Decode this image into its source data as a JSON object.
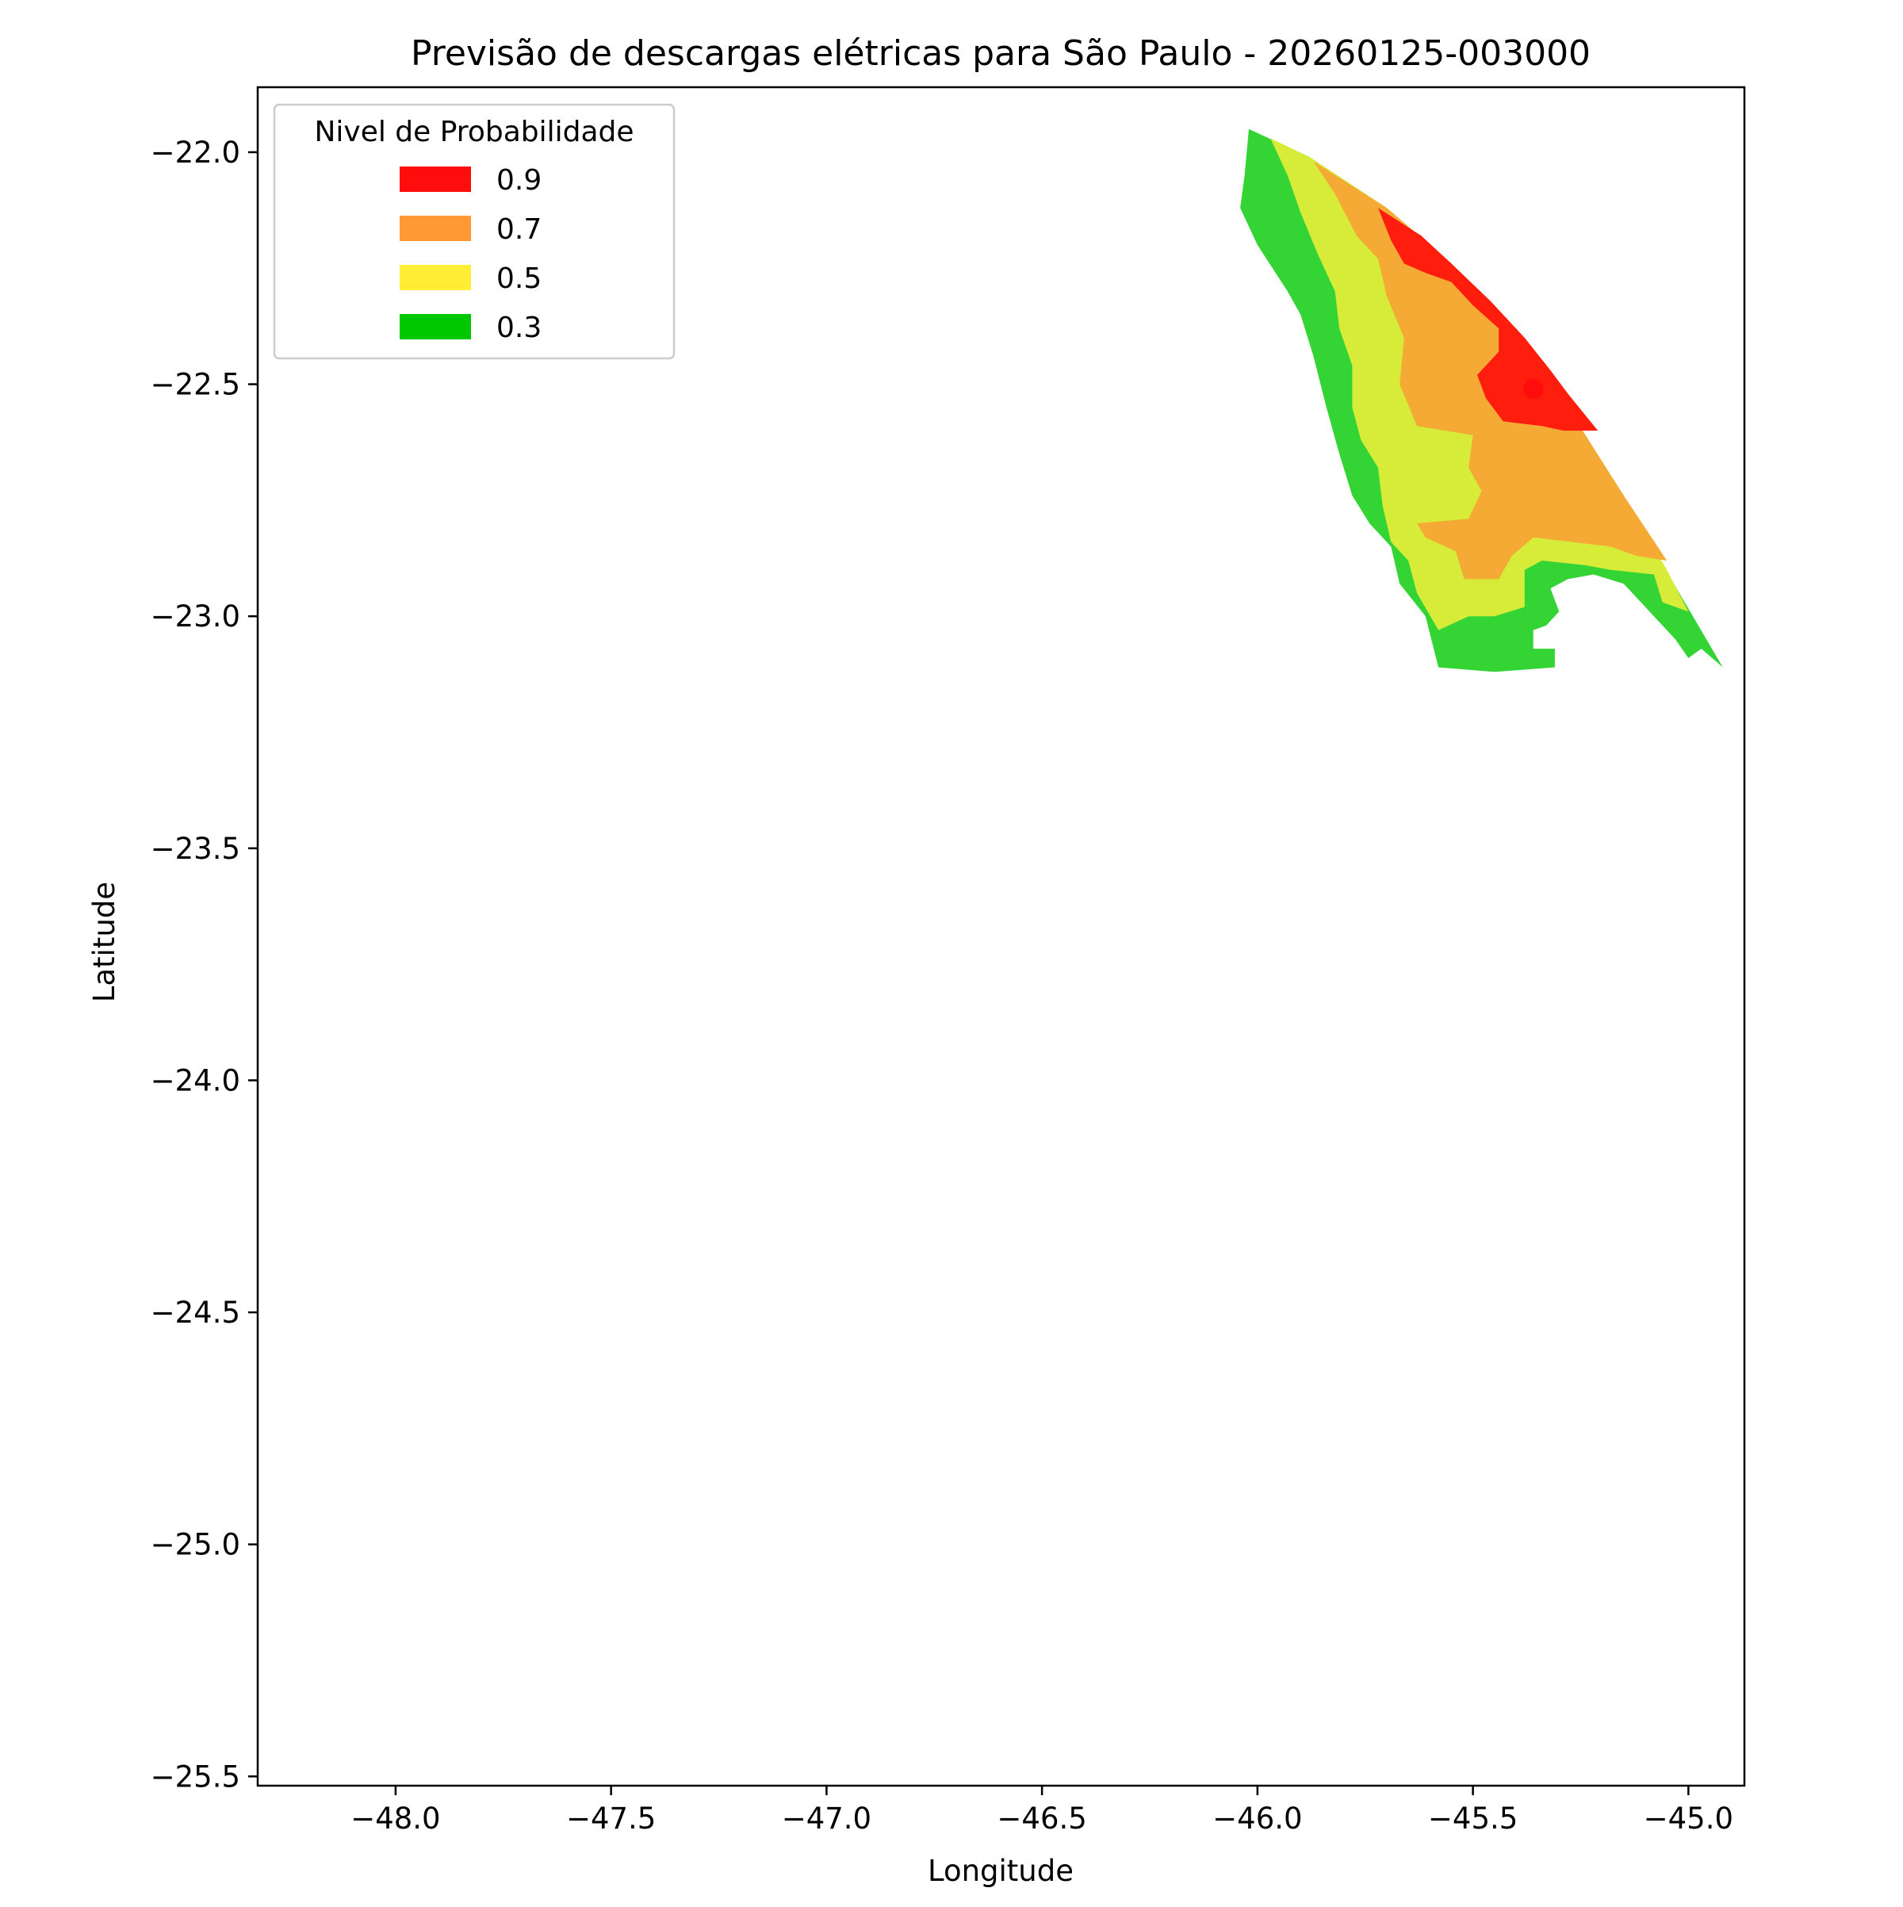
{
  "chart_data": {
    "type": "heatmap",
    "title": "Previsão de descargas elétricas para São Paulo - 20260125-003000",
    "xlabel": "Longitude",
    "ylabel": "Latitude",
    "xlim": [
      -48.32,
      -44.87
    ],
    "ylim": [
      -25.52,
      -21.86
    ],
    "xticks": [
      {
        "value": -48.0,
        "label": "−48.0"
      },
      {
        "value": -47.5,
        "label": "−47.5"
      },
      {
        "value": -47.0,
        "label": "−47.0"
      },
      {
        "value": -46.5,
        "label": "−46.5"
      },
      {
        "value": -46.0,
        "label": "−46.0"
      },
      {
        "value": -45.5,
        "label": "−45.5"
      },
      {
        "value": -45.0,
        "label": "−45.0"
      }
    ],
    "yticks": [
      {
        "value": -22.0,
        "label": "−22.0"
      },
      {
        "value": -22.5,
        "label": "−22.5"
      },
      {
        "value": -23.0,
        "label": "−23.0"
      },
      {
        "value": -23.5,
        "label": "−23.5"
      },
      {
        "value": -24.0,
        "label": "−24.0"
      },
      {
        "value": -24.5,
        "label": "−24.5"
      },
      {
        "value": -25.0,
        "label": "−25.0"
      },
      {
        "value": -25.5,
        "label": "−25.5"
      }
    ],
    "grid": false,
    "legend": {
      "title": "Nivel de Probabilidade",
      "placement": "top-left",
      "entries": [
        {
          "label": "0.9",
          "color": "#ff0d0d"
        },
        {
          "label": "0.7",
          "color": "#ff9933"
        },
        {
          "label": "0.5",
          "color": "#ffee33"
        },
        {
          "label": "0.3",
          "color": "#00c800"
        }
      ]
    },
    "regions": [
      {
        "level": "0.3",
        "color": "#35d435",
        "polygon": [
          [
            -46.02,
            -21.95
          ],
          [
            -45.88,
            -22.01
          ],
          [
            -45.7,
            -22.12
          ],
          [
            -45.55,
            -22.24
          ],
          [
            -45.42,
            -22.38
          ],
          [
            -45.28,
            -22.55
          ],
          [
            -45.15,
            -22.74
          ],
          [
            -45.04,
            -22.92
          ],
          [
            -44.92,
            -23.11
          ],
          [
            -44.97,
            -23.07
          ],
          [
            -45.0,
            -23.09
          ],
          [
            -45.03,
            -23.05
          ],
          [
            -45.08,
            -23.0
          ],
          [
            -45.15,
            -22.93
          ],
          [
            -45.22,
            -22.91
          ],
          [
            -45.28,
            -22.92
          ],
          [
            -45.32,
            -22.94
          ],
          [
            -45.3,
            -22.99
          ],
          [
            -45.33,
            -23.02
          ],
          [
            -45.36,
            -23.03
          ],
          [
            -45.36,
            -23.07
          ],
          [
            -45.31,
            -23.07
          ],
          [
            -45.31,
            -23.11
          ],
          [
            -45.45,
            -23.12
          ],
          [
            -45.58,
            -23.11
          ],
          [
            -45.61,
            -23.0
          ],
          [
            -45.67,
            -22.93
          ],
          [
            -45.69,
            -22.85
          ],
          [
            -45.74,
            -22.8
          ],
          [
            -45.78,
            -22.74
          ],
          [
            -45.81,
            -22.65
          ],
          [
            -45.84,
            -22.55
          ],
          [
            -45.87,
            -22.44
          ],
          [
            -45.9,
            -22.35
          ],
          [
            -45.93,
            -22.3
          ],
          [
            -46.0,
            -22.2
          ],
          [
            -46.04,
            -22.12
          ],
          [
            -46.03,
            -22.05
          ]
        ]
      },
      {
        "level": "0.5",
        "color": "#d6ec38",
        "polygon": [
          [
            -45.97,
            -21.97
          ],
          [
            -45.88,
            -22.01
          ],
          [
            -45.7,
            -22.12
          ],
          [
            -45.55,
            -22.24
          ],
          [
            -45.42,
            -22.38
          ],
          [
            -45.28,
            -22.55
          ],
          [
            -45.15,
            -22.74
          ],
          [
            -45.05,
            -22.9
          ],
          [
            -45.0,
            -22.99
          ],
          [
            -45.06,
            -22.97
          ],
          [
            -45.08,
            -22.91
          ],
          [
            -45.18,
            -22.9
          ],
          [
            -45.24,
            -22.89
          ],
          [
            -45.34,
            -22.88
          ],
          [
            -45.38,
            -22.9
          ],
          [
            -45.38,
            -22.98
          ],
          [
            -45.45,
            -23.0
          ],
          [
            -45.51,
            -23.0
          ],
          [
            -45.58,
            -23.03
          ],
          [
            -45.63,
            -22.95
          ],
          [
            -45.65,
            -22.88
          ],
          [
            -45.69,
            -22.84
          ],
          [
            -45.71,
            -22.76
          ],
          [
            -45.72,
            -22.68
          ],
          [
            -45.76,
            -22.62
          ],
          [
            -45.78,
            -22.55
          ],
          [
            -45.78,
            -22.46
          ],
          [
            -45.81,
            -22.38
          ],
          [
            -45.82,
            -22.3
          ],
          [
            -45.86,
            -22.22
          ],
          [
            -45.9,
            -22.13
          ],
          [
            -45.93,
            -22.05
          ]
        ]
      },
      {
        "level": "0.7",
        "color": "#f4aa35",
        "polygon": [
          [
            -45.87,
            -22.02
          ],
          [
            -45.7,
            -22.12
          ],
          [
            -45.55,
            -22.24
          ],
          [
            -45.42,
            -22.38
          ],
          [
            -45.28,
            -22.55
          ],
          [
            -45.15,
            -22.74
          ],
          [
            -45.05,
            -22.88
          ],
          [
            -45.12,
            -22.87
          ],
          [
            -45.18,
            -22.85
          ],
          [
            -45.36,
            -22.83
          ],
          [
            -45.41,
            -22.87
          ],
          [
            -45.44,
            -22.92
          ],
          [
            -45.52,
            -22.92
          ],
          [
            -45.54,
            -22.86
          ],
          [
            -45.61,
            -22.83
          ],
          [
            -45.63,
            -22.8
          ],
          [
            -45.51,
            -22.79
          ],
          [
            -45.48,
            -22.73
          ],
          [
            -45.51,
            -22.68
          ],
          [
            -45.5,
            -22.61
          ],
          [
            -45.63,
            -22.59
          ],
          [
            -45.67,
            -22.5
          ],
          [
            -45.66,
            -22.4
          ],
          [
            -45.7,
            -22.31
          ],
          [
            -45.72,
            -22.23
          ],
          [
            -45.77,
            -22.18
          ],
          [
            -45.82,
            -22.09
          ]
        ]
      },
      {
        "level": "0.9",
        "color": "#ff1d0d",
        "polygon": [
          [
            -45.72,
            -22.12
          ],
          [
            -45.62,
            -22.18
          ],
          [
            -45.55,
            -22.24
          ],
          [
            -45.46,
            -22.32
          ],
          [
            -45.38,
            -22.4
          ],
          [
            -45.32,
            -22.47
          ],
          [
            -45.28,
            -22.52
          ],
          [
            -45.21,
            -22.6
          ],
          [
            -45.29,
            -22.6
          ],
          [
            -45.34,
            -22.59
          ],
          [
            -45.43,
            -22.58
          ],
          [
            -45.47,
            -22.53
          ],
          [
            -45.49,
            -22.48
          ],
          [
            -45.44,
            -22.43
          ],
          [
            -45.44,
            -22.38
          ],
          [
            -45.5,
            -22.33
          ],
          [
            -45.55,
            -22.28
          ],
          [
            -45.61,
            -22.26
          ],
          [
            -45.66,
            -22.24
          ],
          [
            -45.69,
            -22.19
          ]
        ]
      }
    ],
    "markers": [
      {
        "x": -45.36,
        "y": -22.51,
        "color": "#ff0d0d"
      }
    ]
  }
}
